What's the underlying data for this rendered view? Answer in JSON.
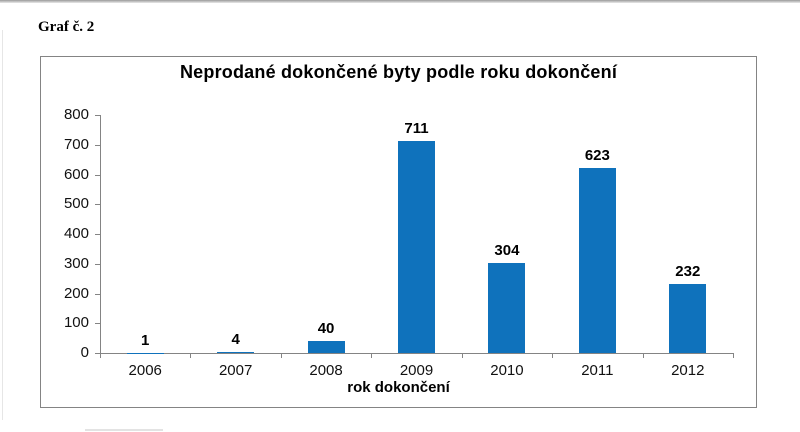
{
  "page": {
    "label": "Graf č. 2"
  },
  "chart_data": {
    "type": "bar",
    "title": "Neprodané dokončené byty podle roku dokončení",
    "categories": [
      "2006",
      "2007",
      "2008",
      "2009",
      "2010",
      "2011",
      "2012"
    ],
    "values": [
      1,
      4,
      40,
      711,
      304,
      623,
      232
    ],
    "data_labels": [
      1,
      4,
      40,
      711,
      304,
      623,
      232
    ],
    "xlabel": "rok dokončení",
    "ylabel": "",
    "ylim": [
      0,
      800
    ],
    "yticks": [
      0,
      100,
      200,
      300,
      400,
      500,
      600,
      700,
      800
    ],
    "bar_color": "#0F72BC",
    "axis_color": "#848484",
    "frame_color": "#848484",
    "grid": false,
    "legend": "none",
    "show_data_labels": true
  }
}
